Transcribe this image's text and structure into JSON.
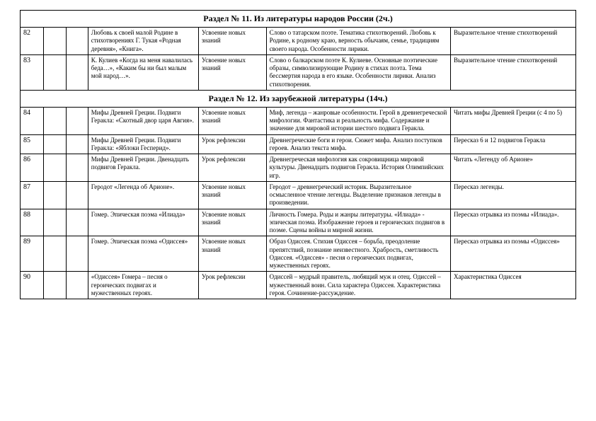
{
  "section11_title": "Раздел № 11. Из литературы народов России (2ч.)",
  "section12_title": "Раздел № 12. Из зарубежной литературы (14ч.)",
  "rows11": [
    {
      "n": "82",
      "topic": "Любовь к своей малой Родине в стихотворениях Г. Тукая «Родная деревня», «Книга».",
      "type": "Усвоение новых знаний",
      "content": "Слово о татарском поэте. Тематика стихотворений. Любовь к Родине, к родному краю, верность обычаям, семье, традициям своего народа. Особенности лирики.",
      "hw": "Выразительное чтение стихотворений"
    },
    {
      "n": "83",
      "topic": "К. Кулиев «Когда на меня навалилась беда…», «Каким бы ни был малым мой народ…».",
      "type": "Усвоение новых знаний",
      "content": "Слово о балкарском поэте К. Кулиеве. Основные поэтические образы, символизирующие Родину в стихах поэта. Тема бессмертия народа в его языке. Особенности лирики. Анализ стихотворения.",
      "hw": "Выразительное чтение стихотворений"
    }
  ],
  "rows12": [
    {
      "n": "84",
      "topic": "Мифы Древней Греции. Подвиги Геракла: «Скотный двор царя Авгия».",
      "type": "Усвоение новых знаний",
      "content": "Миф, легенда – жанровые особенности. Герой в древнегреческой мифологии. Фантастика и реальность мифа. Содержание и значение для мировой истории шестого подвига Геракла.",
      "hw": "Читать мифы Древней Греции (с 4 по 5)"
    },
    {
      "n": "85",
      "topic": "Мифы Древней Греции. Подвиги Геракла: «Яблоки Гесперид».",
      "type": "Урок рефлексии",
      "content": "Древнегреческие боги и герои. Сюжет мифа. Анализ поступков героев. Анализ текста мифа.",
      "hw": "Пересказ 6 и 12 подвигов Геракла"
    },
    {
      "n": "86",
      "topic": "Мифы Древней Греции. Двенадцать подвигов Геракла.",
      "type": "Урок рефлексии",
      "content": "Древнегреческая мифология как сокровищница мировой культуры. Двенадцать подвигов Геракла. История Олимпийских игр.",
      "hw": "Читать «Легенду об Арионе»"
    },
    {
      "n": "87",
      "topic": "Геродот «Легенда об Арионе».",
      "type": "Усвоение новых знаний",
      "content": "Геродот – древнегреческий историк. Выразительное осмысленное чтение легенды. Выделение признаков легенды в произведении.",
      "hw": "Пересказ легенды."
    },
    {
      "n": "88",
      "topic": "Гомер. Эпическая поэма «Илиада»",
      "type": "Усвоение новых знаний",
      "content": "Личность Гомера. Роды и жанры литературы. «Илиада» - эпическая поэма. Изображение героев и героических подвигов в поэме. Сцены войны и мирной жизни.",
      "hw": "Пересказ отрывка из поэмы «Илиада»."
    },
    {
      "n": "89",
      "topic": "Гомер. Эпическая поэма «Одиссея»",
      "type": "Усвоение новых знаний",
      "content": "Образ Одиссея. Стихия Одиссея – борьба, преодоление препятствий, познание неизвестного. Храбрость, сметливость Одиссея. «Одиссея» - песня о героических подвигах, мужественных героях.",
      "hw": "Пересказ отрывка из поэмы «Одиссея»"
    },
    {
      "n": "90",
      "topic": "«Одиссея»  Гомера – песня о героических подвигах и мужественных героях.",
      "type": "Урок рефлексии",
      "content": "Одиссей – мудрый правитель, любящий муж и отец. Одиссей – мужественный воин. Сила характера Одиссея. Характеристика героя. Сочинение-рассуждение.",
      "hw": "Характеристика Одиссея"
    }
  ]
}
